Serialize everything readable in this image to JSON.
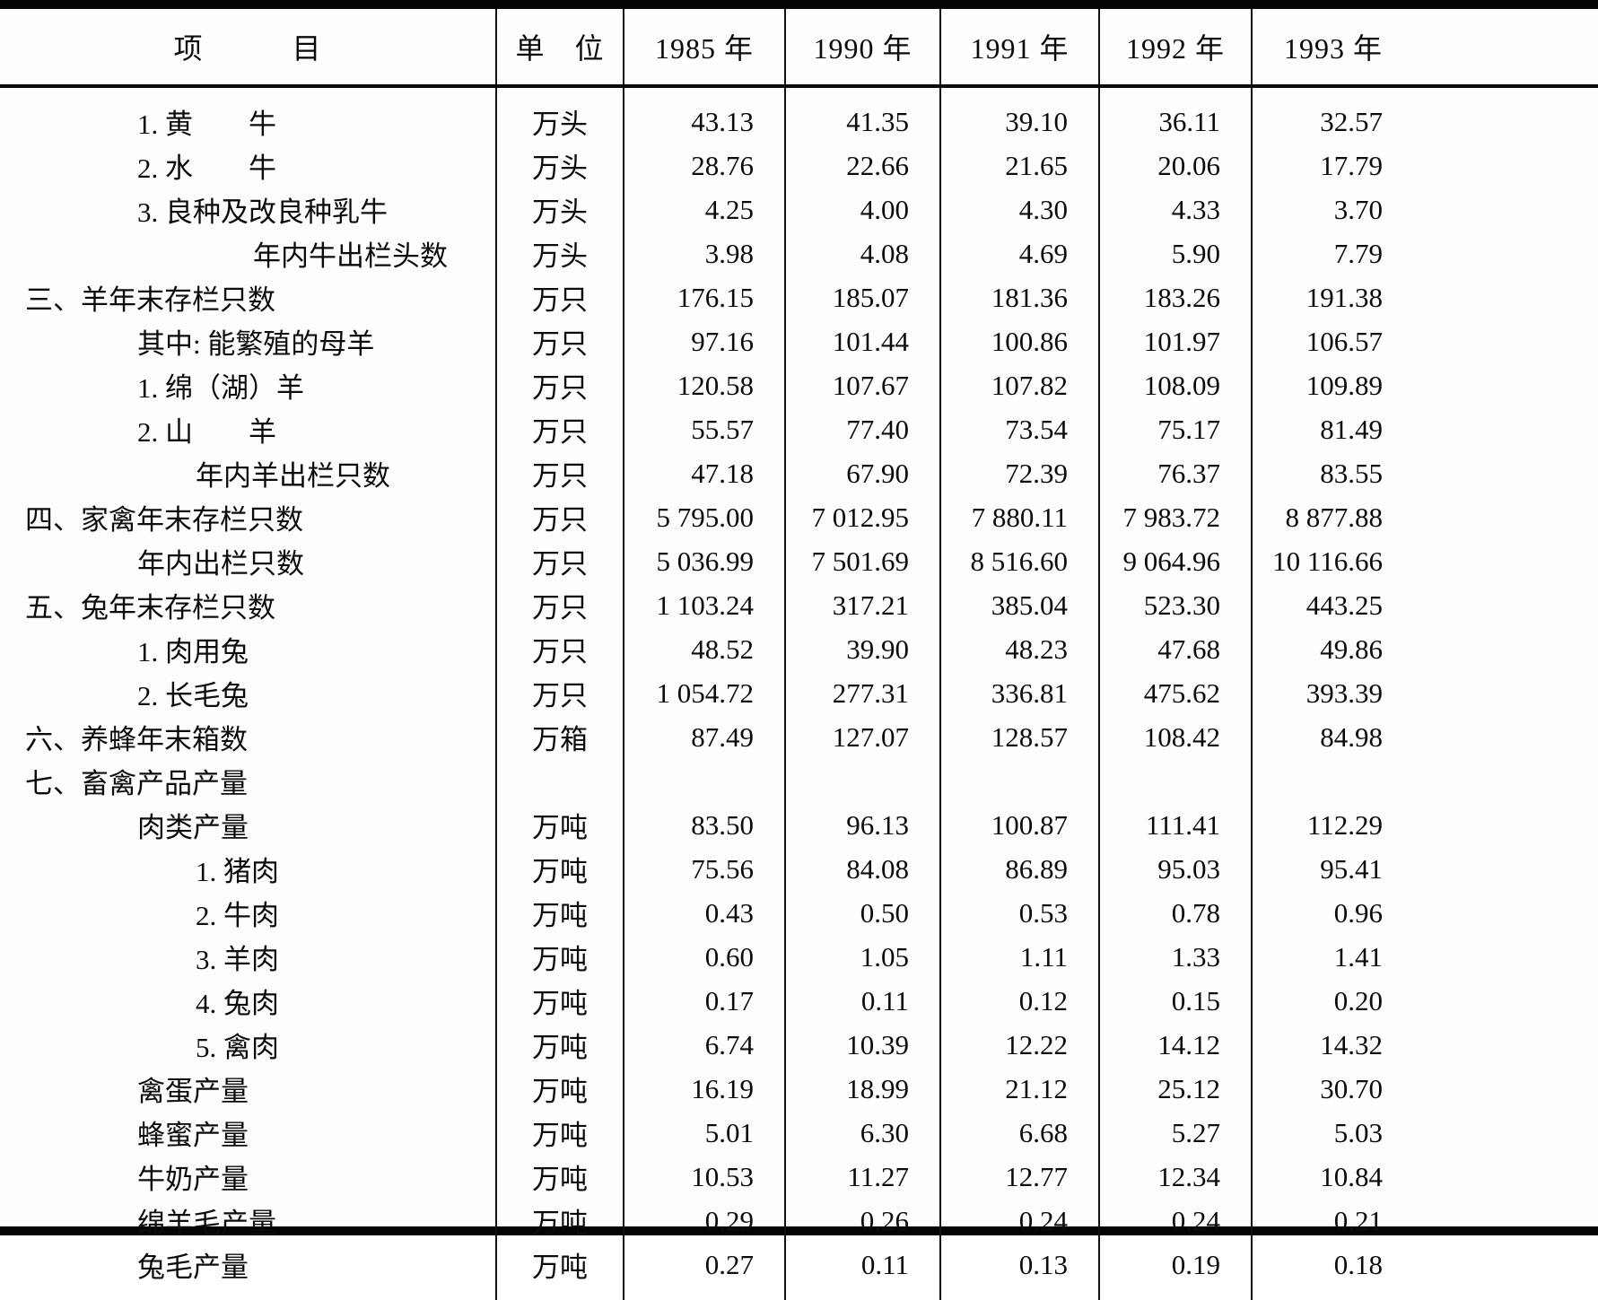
{
  "table": {
    "columns": [
      "项　　　目",
      "单　位",
      "1985 年",
      "1990 年",
      "1991 年",
      "1992 年",
      "1993 年"
    ],
    "rows": [
      {
        "label": "1. 黄　　牛",
        "indent": 1,
        "unit": "万头",
        "values": [
          "43.13",
          "41.35",
          "39.10",
          "36.11",
          "32.57"
        ]
      },
      {
        "label": "2. 水　　牛",
        "indent": 1,
        "unit": "万头",
        "values": [
          "28.76",
          "22.66",
          "21.65",
          "20.06",
          "17.79"
        ]
      },
      {
        "label": "3. 良种及改良种乳牛",
        "indent": 1,
        "unit": "万头",
        "values": [
          "4.25",
          "4.00",
          "4.30",
          "4.33",
          "3.70"
        ]
      },
      {
        "label": "年内牛出栏头数",
        "indent": 3,
        "unit": "万头",
        "values": [
          "3.98",
          "4.08",
          "4.69",
          "5.90",
          "7.79"
        ]
      },
      {
        "label": "三、羊年末存栏只数",
        "indent": 0,
        "unit": "万只",
        "values": [
          "176.15",
          "185.07",
          "181.36",
          "183.26",
          "191.38"
        ]
      },
      {
        "label": "其中: 能繁殖的母羊",
        "indent": 1,
        "unit": "万只",
        "values": [
          "97.16",
          "101.44",
          "100.86",
          "101.97",
          "106.57"
        ]
      },
      {
        "label": "1. 绵（湖）羊",
        "indent": 1,
        "unit": "万只",
        "values": [
          "120.58",
          "107.67",
          "107.82",
          "108.09",
          "109.89"
        ]
      },
      {
        "label": "2. 山　　羊",
        "indent": 1,
        "unit": "万只",
        "values": [
          "55.57",
          "77.40",
          "73.54",
          "75.17",
          "81.49"
        ]
      },
      {
        "label": "年内羊出栏只数",
        "indent": 2,
        "unit": "万只",
        "values": [
          "47.18",
          "67.90",
          "72.39",
          "76.37",
          "83.55"
        ]
      },
      {
        "label": "四、家禽年末存栏只数",
        "indent": 0,
        "unit": "万只",
        "values": [
          "5 795.00",
          "7 012.95",
          "7 880.11",
          "7 983.72",
          "8 877.88"
        ]
      },
      {
        "label": "年内出栏只数",
        "indent": 1,
        "unit": "万只",
        "values": [
          "5 036.99",
          "7 501.69",
          "8 516.60",
          "9 064.96",
          "10 116.66"
        ]
      },
      {
        "label": "五、兔年末存栏只数",
        "indent": 0,
        "unit": "万只",
        "values": [
          "1 103.24",
          "317.21",
          "385.04",
          "523.30",
          "443.25"
        ]
      },
      {
        "label": "1. 肉用兔",
        "indent": 1,
        "unit": "万只",
        "values": [
          "48.52",
          "39.90",
          "48.23",
          "47.68",
          "49.86"
        ]
      },
      {
        "label": "2. 长毛兔",
        "indent": 1,
        "unit": "万只",
        "values": [
          "1 054.72",
          "277.31",
          "336.81",
          "475.62",
          "393.39"
        ]
      },
      {
        "label": "六、养蜂年末箱数",
        "indent": 0,
        "unit": "万箱",
        "values": [
          "87.49",
          "127.07",
          "128.57",
          "108.42",
          "84.98"
        ]
      },
      {
        "label": "七、畜禽产品产量",
        "indent": 0,
        "unit": "",
        "values": [
          "",
          "",
          "",
          "",
          ""
        ]
      },
      {
        "label": "肉类产量",
        "indent": 1,
        "unit": "万吨",
        "values": [
          "83.50",
          "96.13",
          "100.87",
          "111.41",
          "112.29"
        ]
      },
      {
        "label": "1. 猪肉",
        "indent": 2,
        "unit": "万吨",
        "values": [
          "75.56",
          "84.08",
          "86.89",
          "95.03",
          "95.41"
        ]
      },
      {
        "label": "2. 牛肉",
        "indent": 2,
        "unit": "万吨",
        "values": [
          "0.43",
          "0.50",
          "0.53",
          "0.78",
          "0.96"
        ]
      },
      {
        "label": "3. 羊肉",
        "indent": 2,
        "unit": "万吨",
        "values": [
          "0.60",
          "1.05",
          "1.11",
          "1.33",
          "1.41"
        ]
      },
      {
        "label": "4. 兔肉",
        "indent": 2,
        "unit": "万吨",
        "values": [
          "0.17",
          "0.11",
          "0.12",
          "0.15",
          "0.20"
        ]
      },
      {
        "label": "5. 禽肉",
        "indent": 2,
        "unit": "万吨",
        "values": [
          "6.74",
          "10.39",
          "12.22",
          "14.12",
          "14.32"
        ]
      },
      {
        "label": "禽蛋产量",
        "indent": 1,
        "unit": "万吨",
        "values": [
          "16.19",
          "18.99",
          "21.12",
          "25.12",
          "30.70"
        ]
      },
      {
        "label": "蜂蜜产量",
        "indent": 1,
        "unit": "万吨",
        "values": [
          "5.01",
          "6.30",
          "6.68",
          "5.27",
          "5.03"
        ]
      },
      {
        "label": "牛奶产量",
        "indent": 1,
        "unit": "万吨",
        "values": [
          "10.53",
          "11.27",
          "12.77",
          "12.34",
          "10.84"
        ]
      },
      {
        "label": "绵羊毛产量",
        "indent": 1,
        "unit": "万吨",
        "values": [
          "0.29",
          "0.26",
          "0.24",
          "0.24",
          "0.21"
        ]
      },
      {
        "label": "兔毛产量",
        "indent": 1,
        "unit": "万吨",
        "values": [
          "0.27",
          "0.11",
          "0.13",
          "0.19",
          "0.18"
        ]
      }
    ]
  }
}
